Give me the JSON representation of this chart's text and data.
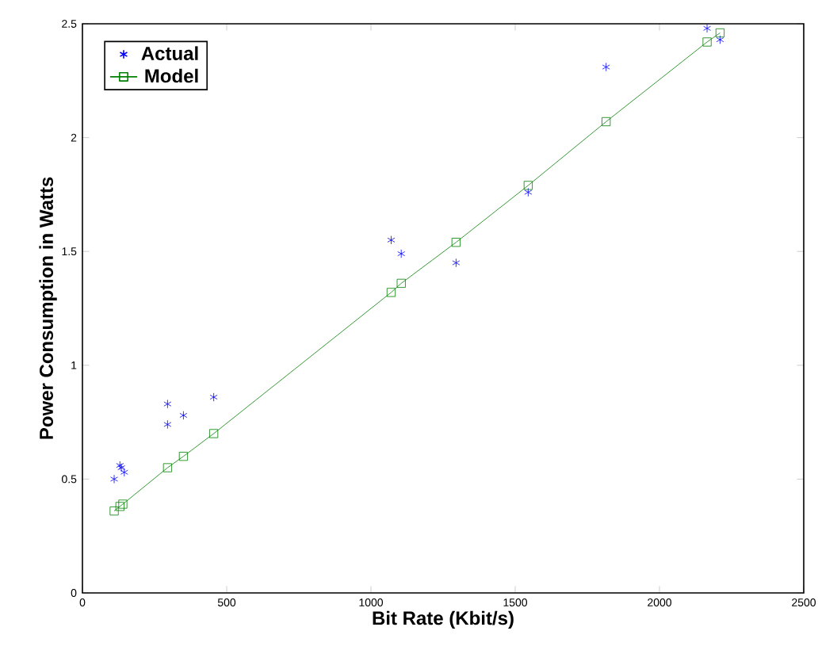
{
  "chart_data": {
    "type": "scatter",
    "xlabel": "Bit Rate (Kbit/s)",
    "ylabel": "Power Consumption in Watts",
    "xlim": [
      0,
      2500
    ],
    "ylim": [
      0,
      2.5
    ],
    "xticks": [
      0,
      500,
      1000,
      1500,
      2000,
      2500
    ],
    "yticks": [
      0,
      0.5,
      1,
      1.5,
      2,
      2.5
    ],
    "legend": "top left",
    "grid": false,
    "series": [
      {
        "name": "Actual",
        "color": "#0000ff",
        "marker": "cross",
        "x": [
          110,
          130,
          135,
          145,
          295,
          295,
          350,
          455,
          1070,
          1105,
          1295,
          1545,
          1815,
          2165,
          2210
        ],
        "values": [
          0.5,
          0.56,
          0.55,
          0.53,
          0.74,
          0.83,
          0.78,
          0.86,
          1.55,
          1.49,
          1.45,
          1.76,
          2.31,
          2.48,
          2.43
        ]
      },
      {
        "name": "Model",
        "type": "line",
        "color": "#008000",
        "marker": "square",
        "line_style": "solid",
        "x": [
          110,
          130,
          140,
          295,
          350,
          455,
          1070,
          1105,
          1295,
          1545,
          1815,
          2165,
          2210
        ],
        "values": [
          0.36,
          0.38,
          0.39,
          0.55,
          0.6,
          0.7,
          1.32,
          1.36,
          1.54,
          1.79,
          2.07,
          2.42,
          2.46
        ]
      }
    ]
  }
}
